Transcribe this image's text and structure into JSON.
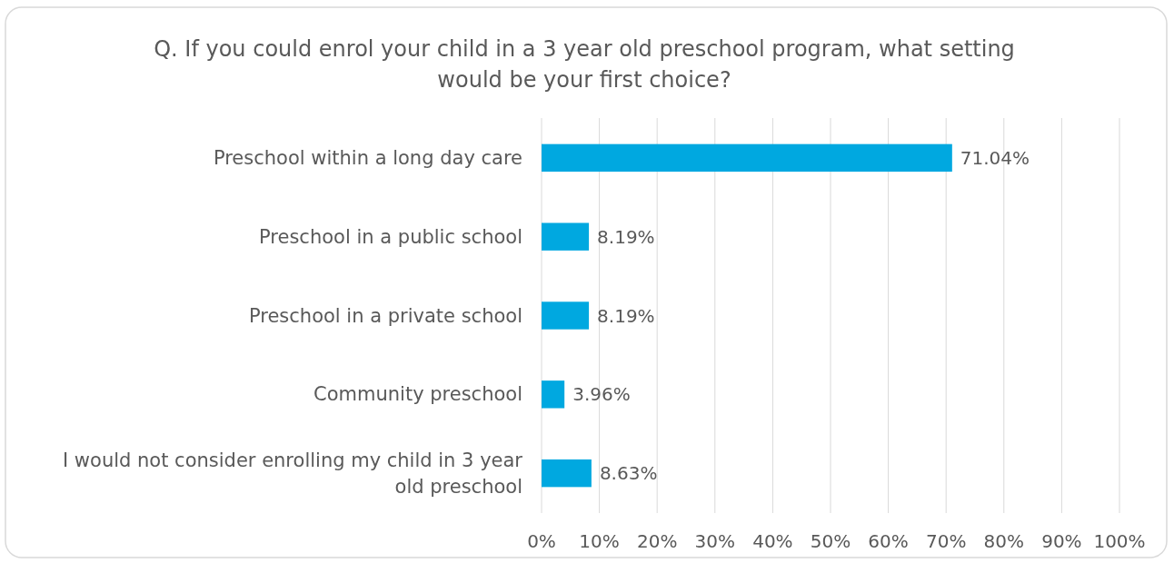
{
  "chart_data": {
    "type": "bar",
    "orientation": "horizontal",
    "title": "Q. If you could enrol your child in a 3 year old preschool program, what setting would be your first choice?",
    "categories": [
      "Preschool within a long day care",
      "Preschool in a public school",
      "Preschool in a private school",
      "Community preschool",
      "I would not consider enrolling my child in 3 year old preschool"
    ],
    "values": [
      71.04,
      8.19,
      8.19,
      3.96,
      8.63
    ],
    "value_labels": [
      "71.04%",
      "8.19%",
      "8.19%",
      "3.96%",
      "8.63%"
    ],
    "color": "#00a8e0",
    "xlim": [
      0,
      100
    ],
    "xticks": [
      {
        "value": 0,
        "label": "0%"
      },
      {
        "value": 10,
        "label": "10%"
      },
      {
        "value": 20,
        "label": "20%"
      },
      {
        "value": 30,
        "label": "30%"
      },
      {
        "value": 40,
        "label": "40%"
      },
      {
        "value": 50,
        "label": "50%"
      },
      {
        "value": 60,
        "label": "60%"
      },
      {
        "value": 70,
        "label": "70%"
      },
      {
        "value": 80,
        "label": "80%"
      },
      {
        "value": 90,
        "label": "90%"
      },
      {
        "value": 100,
        "label": "100%"
      }
    ],
    "grid": "x"
  }
}
